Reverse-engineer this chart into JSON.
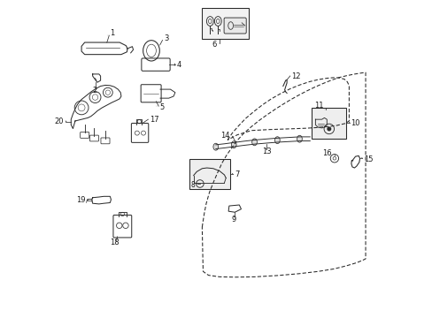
{
  "bg_color": "#ffffff",
  "line_color": "#2a2a2a",
  "label_color": "#1a1a1a",
  "lw": 0.9,
  "fontsize": 6.0,
  "door_outer": {
    "x": [
      0.455,
      0.458,
      0.462,
      0.468,
      0.478,
      0.492,
      0.505,
      0.518,
      0.532,
      0.548,
      0.565,
      0.585,
      0.61,
      0.635,
      0.66,
      0.685,
      0.71,
      0.735,
      0.76,
      0.785,
      0.81,
      0.835,
      0.86,
      0.885,
      0.91,
      0.935,
      0.96,
      0.97,
      0.97,
      0.96,
      0.94,
      0.91,
      0.87,
      0.82,
      0.76,
      0.69,
      0.62,
      0.56,
      0.51,
      0.475,
      0.458,
      0.455
    ],
    "y": [
      0.285,
      0.305,
      0.33,
      0.36,
      0.395,
      0.43,
      0.46,
      0.488,
      0.512,
      0.535,
      0.558,
      0.58,
      0.602,
      0.622,
      0.64,
      0.657,
      0.673,
      0.688,
      0.702,
      0.715,
      0.727,
      0.738,
      0.748,
      0.757,
      0.763,
      0.768,
      0.772,
      0.773,
      0.185,
      0.18,
      0.172,
      0.163,
      0.153,
      0.145,
      0.138,
      0.132,
      0.128,
      0.127,
      0.128,
      0.133,
      0.145,
      0.285
    ]
  },
  "window_inner": {
    "x": [
      0.535,
      0.55,
      0.57,
      0.592,
      0.618,
      0.645,
      0.673,
      0.703,
      0.733,
      0.763,
      0.793,
      0.822,
      0.848,
      0.87,
      0.888,
      0.903,
      0.912,
      0.918,
      0.918,
      0.905,
      0.875,
      0.83,
      0.78,
      0.725,
      0.668,
      0.61,
      0.565,
      0.535
    ],
    "y": [
      0.56,
      0.582,
      0.605,
      0.628,
      0.65,
      0.671,
      0.69,
      0.707,
      0.722,
      0.734,
      0.744,
      0.751,
      0.755,
      0.757,
      0.756,
      0.752,
      0.744,
      0.732,
      0.62,
      0.612,
      0.605,
      0.6,
      0.597,
      0.595,
      0.593,
      0.59,
      0.576,
      0.56
    ]
  }
}
